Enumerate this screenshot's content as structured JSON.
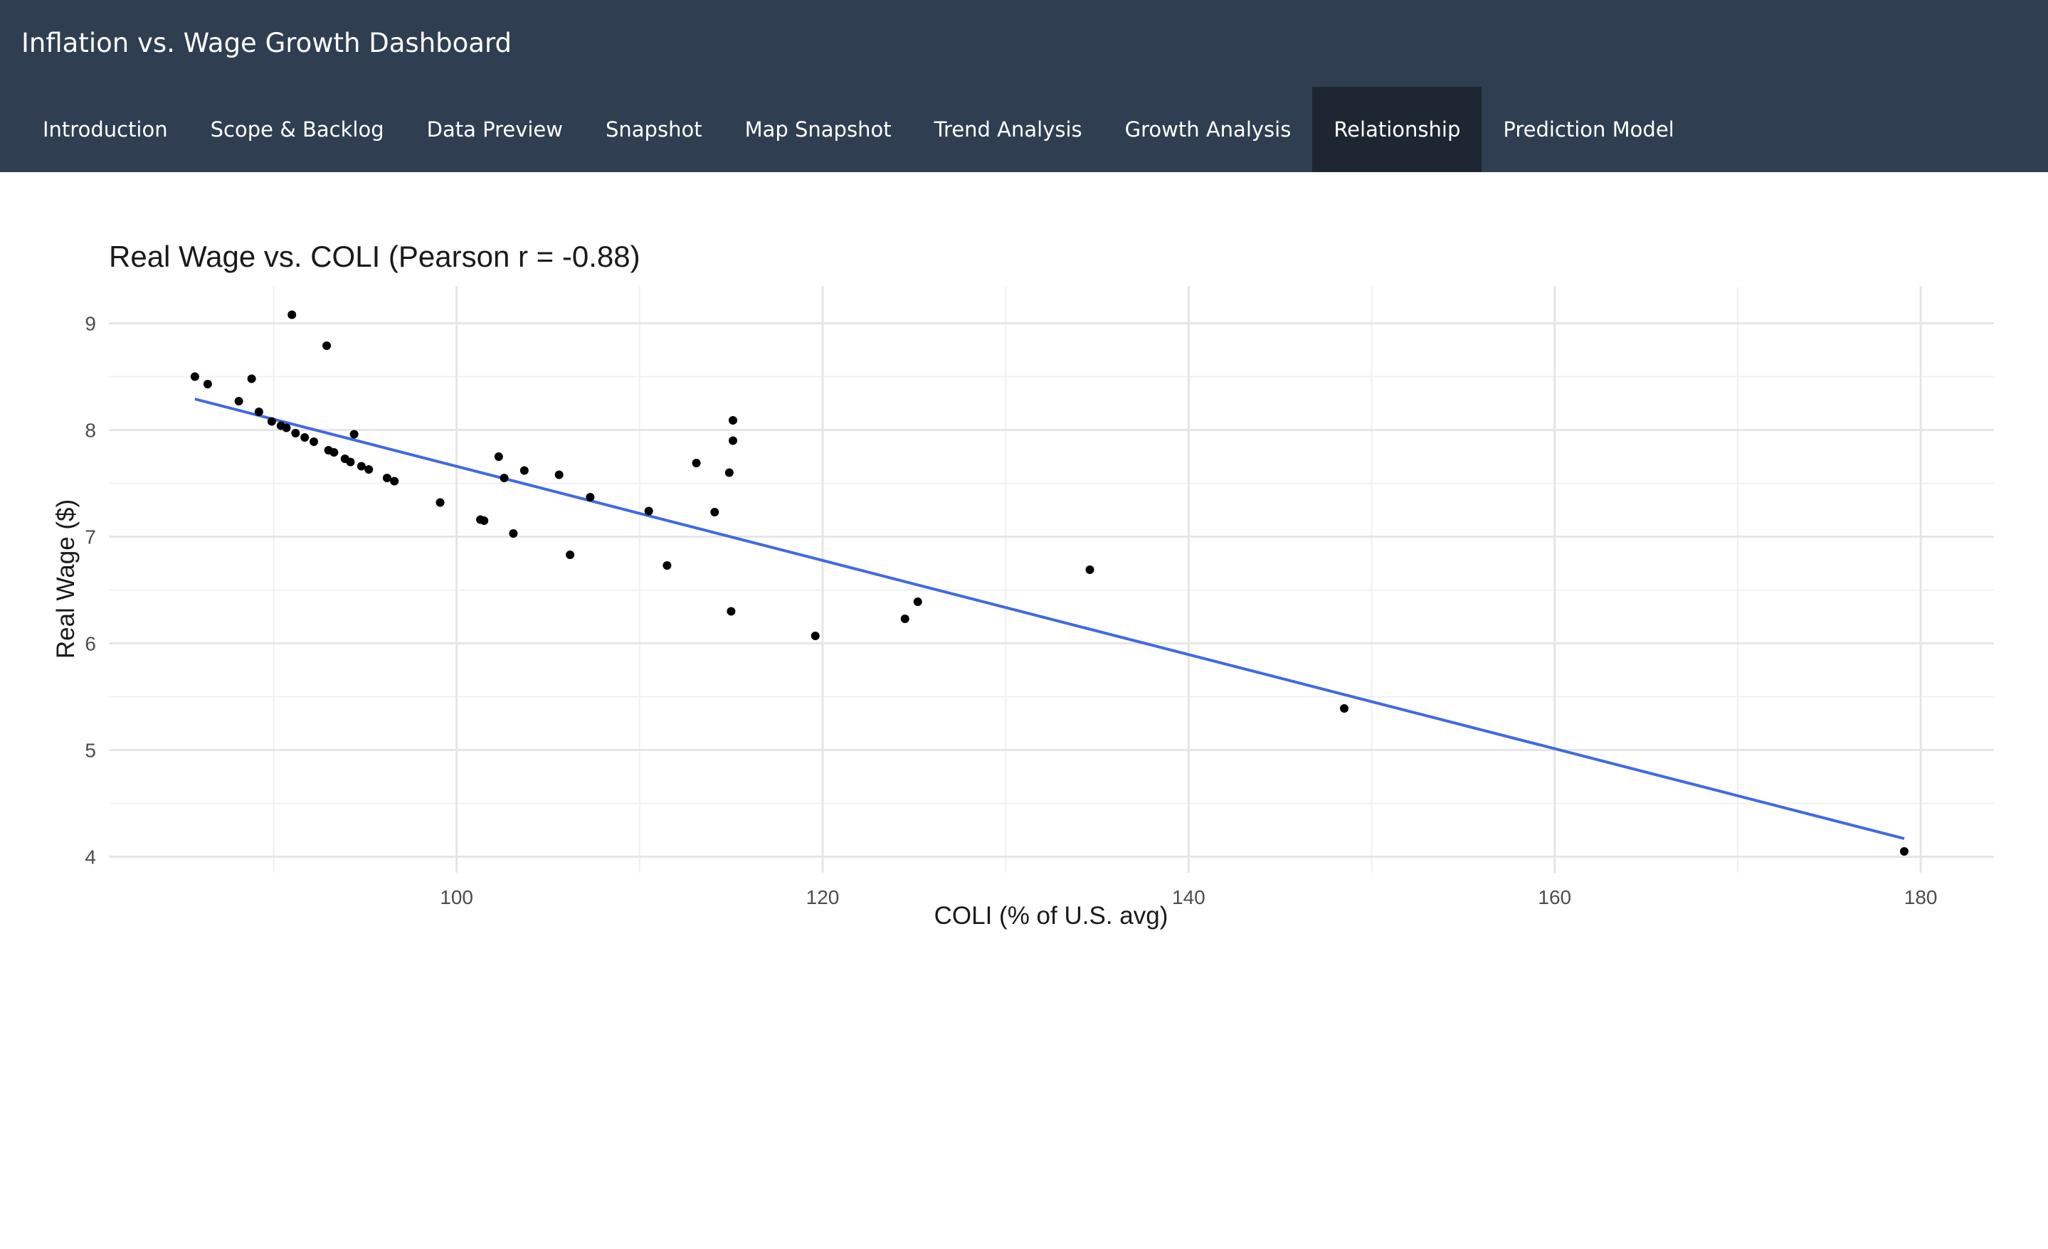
{
  "app": {
    "title": "Inflation vs. Wage Growth Dashboard",
    "colors": {
      "navbar": "#2f3e50",
      "active_tab": "#1e2731",
      "fit_line": "#4169e1",
      "points": "#000000"
    }
  },
  "nav": {
    "active_index": 7,
    "tabs": [
      {
        "label": "Introduction"
      },
      {
        "label": "Scope & Backlog"
      },
      {
        "label": "Data Preview"
      },
      {
        "label": "Snapshot"
      },
      {
        "label": "Map Snapshot"
      },
      {
        "label": "Trend Analysis"
      },
      {
        "label": "Growth Analysis"
      },
      {
        "label": "Relationship"
      },
      {
        "label": "Prediction Model"
      }
    ]
  },
  "chart_data": {
    "type": "scatter",
    "title": "Real Wage vs. COLI (Pearson r = -0.88)",
    "xlabel": "COLI (% of U.S. avg)",
    "ylabel": "Real Wage ($)",
    "xlim": [
      81,
      184
    ],
    "ylim": [
      3.85,
      9.35
    ],
    "x_ticks": [
      100,
      120,
      140,
      160,
      180
    ],
    "y_ticks": [
      4,
      5,
      6,
      7,
      8,
      9
    ],
    "grid": true,
    "legend": "none",
    "points": [
      {
        "x": 85.7,
        "y": 8.5
      },
      {
        "x": 86.4,
        "y": 8.43
      },
      {
        "x": 88.1,
        "y": 8.27
      },
      {
        "x": 88.8,
        "y": 8.48
      },
      {
        "x": 89.2,
        "y": 8.17
      },
      {
        "x": 89.9,
        "y": 8.08
      },
      {
        "x": 90.4,
        "y": 8.04
      },
      {
        "x": 90.7,
        "y": 8.02
      },
      {
        "x": 91.2,
        "y": 7.97
      },
      {
        "x": 91.7,
        "y": 7.93
      },
      {
        "x": 92.2,
        "y": 7.89
      },
      {
        "x": 91.0,
        "y": 9.08
      },
      {
        "x": 92.9,
        "y": 8.79
      },
      {
        "x": 93.0,
        "y": 7.81
      },
      {
        "x": 93.3,
        "y": 7.79
      },
      {
        "x": 93.9,
        "y": 7.73
      },
      {
        "x": 94.2,
        "y": 7.7
      },
      {
        "x": 94.4,
        "y": 7.96
      },
      {
        "x": 94.8,
        "y": 7.66
      },
      {
        "x": 95.2,
        "y": 7.63
      },
      {
        "x": 96.2,
        "y": 7.55
      },
      {
        "x": 96.6,
        "y": 7.52
      },
      {
        "x": 99.1,
        "y": 7.32
      },
      {
        "x": 101.3,
        "y": 7.16
      },
      {
        "x": 101.5,
        "y": 7.15
      },
      {
        "x": 102.3,
        "y": 7.75
      },
      {
        "x": 102.6,
        "y": 7.55
      },
      {
        "x": 103.1,
        "y": 7.03
      },
      {
        "x": 103.7,
        "y": 7.62
      },
      {
        "x": 105.6,
        "y": 7.58
      },
      {
        "x": 106.2,
        "y": 6.83
      },
      {
        "x": 107.3,
        "y": 7.37
      },
      {
        "x": 110.5,
        "y": 7.24
      },
      {
        "x": 111.5,
        "y": 6.73
      },
      {
        "x": 113.1,
        "y": 7.69
      },
      {
        "x": 114.1,
        "y": 7.23
      },
      {
        "x": 114.9,
        "y": 7.6
      },
      {
        "x": 115.0,
        "y": 6.3
      },
      {
        "x": 115.1,
        "y": 7.9
      },
      {
        "x": 115.1,
        "y": 8.09
      },
      {
        "x": 119.6,
        "y": 6.07
      },
      {
        "x": 124.5,
        "y": 6.23
      },
      {
        "x": 125.2,
        "y": 6.39
      },
      {
        "x": 134.6,
        "y": 6.69
      },
      {
        "x": 148.5,
        "y": 5.39
      },
      {
        "x": 179.1,
        "y": 4.05
      }
    ],
    "fit_line": {
      "x": [
        85.7,
        179.1
      ],
      "y": [
        8.29,
        4.17
      ]
    }
  }
}
